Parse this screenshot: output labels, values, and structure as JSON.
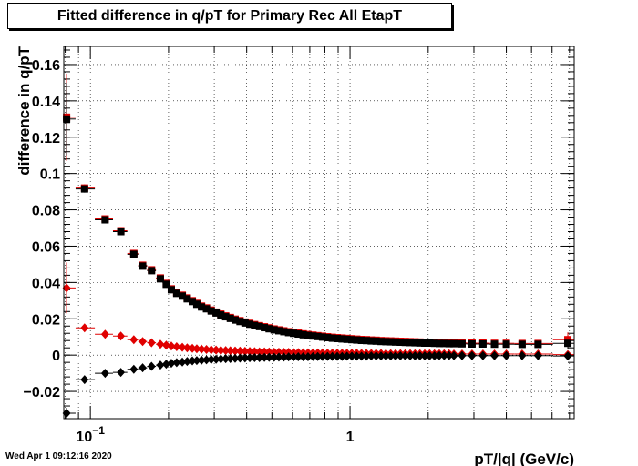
{
  "footer": {
    "datestamp": "Wed Apr  1 09:12:16 2020"
  },
  "chart_data": {
    "type": "scatter",
    "title": "Fitted difference in q/pT for Primary Rec All EtapT",
    "xlabel": "pT/|q| (GeV/c)",
    "ylabel": "difference in q/pT",
    "xscale": "log",
    "xlim": [
      0.079,
      7.3
    ],
    "ylim": [
      -0.035,
      0.17
    ],
    "grid": true,
    "xticks_major": [
      {
        "value": 0.1,
        "base": "10",
        "exp": "−1"
      },
      {
        "value": 1,
        "base": "1",
        "exp": ""
      }
    ],
    "yticks": [
      {
        "value": -0.02,
        "label": "−0.02"
      },
      {
        "value": 0,
        "label": "0"
      },
      {
        "value": 0.02,
        "label": "0.02"
      },
      {
        "value": 0.04,
        "label": "0.04"
      },
      {
        "value": 0.06,
        "label": "0.06"
      },
      {
        "value": 0.08,
        "label": "0.08"
      },
      {
        "value": 0.1,
        "label": "0.1"
      },
      {
        "value": 0.12,
        "label": "0.12"
      },
      {
        "value": 0.14,
        "label": "0.14"
      },
      {
        "value": 0.16,
        "label": "0.16"
      }
    ],
    "x": [
      0.081,
      0.095,
      0.114,
      0.131,
      0.147,
      0.159,
      0.172,
      0.186,
      0.196,
      0.205,
      0.215,
      0.226,
      0.236,
      0.247,
      0.257,
      0.268,
      0.28,
      0.292,
      0.305,
      0.318,
      0.332,
      0.346,
      0.361,
      0.377,
      0.394,
      0.411,
      0.429,
      0.448,
      0.468,
      0.488,
      0.51,
      0.532,
      0.556,
      0.58,
      0.606,
      0.632,
      0.66,
      0.689,
      0.72,
      0.751,
      0.784,
      0.819,
      0.855,
      0.893,
      0.932,
      0.973,
      1.016,
      1.061,
      1.107,
      1.156,
      1.207,
      1.26,
      1.316,
      1.374,
      1.434,
      1.497,
      1.563,
      1.632,
      1.704,
      1.779,
      1.858,
      1.939,
      2.025,
      2.114,
      2.207,
      2.304,
      2.406,
      2.512,
      2.7,
      2.95,
      3.25,
      3.6,
      4.0,
      4.6,
      5.3,
      6.9
    ],
    "series": [
      {
        "marker": "square",
        "color": "#e00000",
        "y": [
          0.131,
          0.092,
          0.075,
          0.0685,
          0.056,
          0.0495,
          0.047,
          0.0425,
          0.0395,
          0.0365,
          0.0345,
          0.033,
          0.0315,
          0.03,
          0.0285,
          0.027,
          0.026,
          0.0248,
          0.0237,
          0.0226,
          0.0216,
          0.0207,
          0.0198,
          0.019,
          0.0182,
          0.0175,
          0.0168,
          0.0162,
          0.0156,
          0.015,
          0.0144,
          0.0139,
          0.0134,
          0.0129,
          0.0125,
          0.0121,
          0.0117,
          0.0113,
          0.011,
          0.0107,
          0.0104,
          0.0101,
          0.0098,
          0.0096,
          0.0094,
          0.0092,
          0.009,
          0.0088,
          0.0086,
          0.0085,
          0.0083,
          0.0082,
          0.008,
          0.0079,
          0.0078,
          0.0077,
          0.0076,
          0.0075,
          0.0074,
          0.0073,
          0.0072,
          0.0071,
          0.0071,
          0.007,
          0.0069,
          0.0069,
          0.0068,
          0.0068,
          0.0067,
          0.0066,
          0.0066,
          0.0065,
          0.0065,
          0.0064,
          0.0064,
          0.0085
        ],
        "yerr": [
          0.024,
          0.002,
          0.0015,
          0.0012,
          0.001,
          0.0009,
          0.0008,
          0.0007,
          0.0006,
          0.0006,
          0.0005,
          0.0005,
          0.0005,
          0.0004,
          0.0004,
          0.0004,
          0.0004,
          0.0003,
          0.0003,
          0.0003,
          0.0003,
          0.0003,
          0.0003,
          0.0003,
          0.0003,
          0.0003,
          0.0003,
          0.0003,
          0.0003,
          0.0003,
          0.0003,
          0.0003,
          0.0003,
          0.0003,
          0.0003,
          0.0003,
          0.0003,
          0.0003,
          0.0003,
          0.0003,
          0.0003,
          0.0003,
          0.0003,
          0.0003,
          0.0003,
          0.0003,
          0.0003,
          0.0003,
          0.0003,
          0.0003,
          0.0003,
          0.0003,
          0.0003,
          0.0003,
          0.0003,
          0.0003,
          0.0003,
          0.0003,
          0.0003,
          0.0003,
          0.0003,
          0.0003,
          0.0003,
          0.0003,
          0.0003,
          0.0003,
          0.0003,
          0.0003,
          0.0003,
          0.0003,
          0.0003,
          0.0003,
          0.0003,
          0.0003,
          0.0003,
          0.004
        ]
      },
      {
        "marker": "square",
        "color": "#000000",
        "y": [
          0.13,
          0.0915,
          0.0745,
          0.068,
          0.0555,
          0.049,
          0.0465,
          0.042,
          0.039,
          0.036,
          0.034,
          0.0325,
          0.031,
          0.0295,
          0.028,
          0.0265,
          0.0255,
          0.0243,
          0.0232,
          0.0221,
          0.0211,
          0.0202,
          0.0193,
          0.0185,
          0.0177,
          0.017,
          0.0163,
          0.0157,
          0.0151,
          0.0145,
          0.0139,
          0.0134,
          0.0129,
          0.0124,
          0.012,
          0.0116,
          0.0112,
          0.0108,
          0.0105,
          0.0102,
          0.0099,
          0.0096,
          0.0093,
          0.0091,
          0.0089,
          0.0087,
          0.0085,
          0.0083,
          0.0081,
          0.008,
          0.0078,
          0.0077,
          0.0075,
          0.0074,
          0.0073,
          0.0072,
          0.0071,
          0.007,
          0.0069,
          0.0068,
          0.0067,
          0.0066,
          0.0066,
          0.0065,
          0.0064,
          0.0064,
          0.0063,
          0.0063,
          0.0062,
          0.0061,
          0.0061,
          0.006,
          0.006,
          0.0059,
          0.0059,
          0.0065
        ],
        "yerr": [
          0.02,
          0.002,
          0.0015,
          0.0012,
          0.001,
          0.0009,
          0.0008,
          0.0007,
          0.0006,
          0.0006,
          0.0005,
          0.0005,
          0.0005,
          0.0004,
          0.0004,
          0.0004,
          0.0004,
          0.0003,
          0.0003,
          0.0003,
          0.0003,
          0.0003,
          0.0003,
          0.0003,
          0.0003,
          0.0003,
          0.0003,
          0.0003,
          0.0003,
          0.0003,
          0.0003,
          0.0003,
          0.0003,
          0.0003,
          0.0003,
          0.0003,
          0.0003,
          0.0003,
          0.0003,
          0.0003,
          0.0003,
          0.0003,
          0.0003,
          0.0003,
          0.0003,
          0.0003,
          0.0003,
          0.0003,
          0.0003,
          0.0003,
          0.0003,
          0.0003,
          0.0003,
          0.0003,
          0.0003,
          0.0003,
          0.0003,
          0.0003,
          0.0003,
          0.0003,
          0.0003,
          0.0003,
          0.0003,
          0.0003,
          0.0003,
          0.0003,
          0.0003,
          0.0003,
          0.0003,
          0.0003,
          0.0003,
          0.0003,
          0.0003,
          0.0003,
          0.0003,
          0.003
        ]
      },
      {
        "marker": "diamond",
        "color": "#e00000",
        "y": [
          0.037,
          0.015,
          0.0115,
          0.0105,
          0.0085,
          0.0075,
          0.0068,
          0.006,
          0.0055,
          0.005,
          0.0046,
          0.0043,
          0.004,
          0.0037,
          0.0035,
          0.0033,
          0.0031,
          0.0029,
          0.0028,
          0.0026,
          0.0025,
          0.0024,
          0.0023,
          0.0022,
          0.0021,
          0.002,
          0.0019,
          0.0018,
          0.0018,
          0.0017,
          0.0016,
          0.0016,
          0.0015,
          0.0015,
          0.0014,
          0.0014,
          0.0013,
          0.0013,
          0.0012,
          0.0012,
          0.0012,
          0.0011,
          0.0011,
          0.0011,
          0.001,
          0.001,
          0.001,
          0.001,
          0.0009,
          0.0009,
          0.0009,
          0.0009,
          0.0009,
          0.0008,
          0.0008,
          0.0008,
          0.0008,
          0.0008,
          0.0008,
          0.0007,
          0.0007,
          0.0007,
          0.0007,
          0.0007,
          0.0007,
          0.0007,
          0.0007,
          0.0006,
          0.0006,
          0.0006,
          0.0006,
          0.0006,
          0.0006,
          0.0006,
          0.0006,
          0.0003
        ],
        "yerr": [
          0.014,
          0.001,
          0.0008,
          0.0007,
          0.0006,
          0.0005,
          0.0005,
          0.0004,
          0.0004,
          0.0004,
          0.0003,
          0.0003,
          0.0003,
          0.0003,
          0.0003,
          0.0003,
          0.0002,
          0.0002,
          0.0002,
          0.0002,
          0.0002,
          0.0002,
          0.0002,
          0.0002,
          0.0002,
          0.0002,
          0.0002,
          0.0002,
          0.0002,
          0.0002,
          0.0002,
          0.0002,
          0.0002,
          0.0002,
          0.0002,
          0.0002,
          0.0002,
          0.0002,
          0.0002,
          0.0002,
          0.0002,
          0.0002,
          0.0002,
          0.0002,
          0.0002,
          0.0002,
          0.0002,
          0.0002,
          0.0002,
          0.0002,
          0.0002,
          0.0002,
          0.0002,
          0.0002,
          0.0002,
          0.0002,
          0.0002,
          0.0002,
          0.0002,
          0.0002,
          0.0002,
          0.0002,
          0.0002,
          0.0002,
          0.0002,
          0.0002,
          0.0002,
          0.0002,
          0.0002,
          0.0002,
          0.0002,
          0.0002,
          0.0002,
          0.0002,
          0.0002,
          0.002
        ]
      },
      {
        "marker": "diamond",
        "color": "#000000",
        "y": [
          -0.032,
          -0.0135,
          -0.01,
          -0.0095,
          -0.0078,
          -0.007,
          -0.0062,
          -0.0055,
          -0.005,
          -0.0045,
          -0.0041,
          -0.0038,
          -0.0035,
          -0.0032,
          -0.003,
          -0.0028,
          -0.0026,
          -0.0024,
          -0.0023,
          -0.0021,
          -0.002,
          -0.0019,
          -0.0018,
          -0.0017,
          -0.0016,
          -0.0015,
          -0.0014,
          -0.0014,
          -0.0013,
          -0.0012,
          -0.0012,
          -0.0011,
          -0.0011,
          -0.001,
          -0.001,
          -0.0009,
          -0.0009,
          -0.0009,
          -0.0008,
          -0.0008,
          -0.0008,
          -0.0007,
          -0.0007,
          -0.0007,
          -0.0007,
          -0.0006,
          -0.0006,
          -0.0006,
          -0.0006,
          -0.0006,
          -0.0005,
          -0.0005,
          -0.0005,
          -0.0005,
          -0.0005,
          -0.0005,
          -0.0004,
          -0.0004,
          -0.0004,
          -0.0004,
          -0.0004,
          -0.0004,
          -0.0004,
          -0.0004,
          -0.0003,
          -0.0003,
          -0.0003,
          -0.0003,
          -0.0003,
          -0.0003,
          -0.0003,
          -0.0003,
          -0.0003,
          -0.0003,
          -0.0003,
          -0.0005
        ],
        "yerr": [
          0.003,
          0.001,
          0.0008,
          0.0007,
          0.0006,
          0.0005,
          0.0005,
          0.0004,
          0.0004,
          0.0004,
          0.0003,
          0.0003,
          0.0003,
          0.0003,
          0.0003,
          0.0003,
          0.0002,
          0.0002,
          0.0002,
          0.0002,
          0.0002,
          0.0002,
          0.0002,
          0.0002,
          0.0002,
          0.0002,
          0.0002,
          0.0002,
          0.0002,
          0.0002,
          0.0002,
          0.0002,
          0.0002,
          0.0002,
          0.0002,
          0.0002,
          0.0002,
          0.0002,
          0.0002,
          0.0002,
          0.0002,
          0.0002,
          0.0002,
          0.0002,
          0.0002,
          0.0002,
          0.0002,
          0.0002,
          0.0002,
          0.0002,
          0.0002,
          0.0002,
          0.0002,
          0.0002,
          0.0002,
          0.0002,
          0.0002,
          0.0002,
          0.0002,
          0.0002,
          0.0002,
          0.0002,
          0.0002,
          0.0002,
          0.0002,
          0.0002,
          0.0002,
          0.0002,
          0.0002,
          0.0002,
          0.0002,
          0.0002,
          0.0002,
          0.0002,
          0.0002,
          0.002
        ]
      }
    ]
  }
}
